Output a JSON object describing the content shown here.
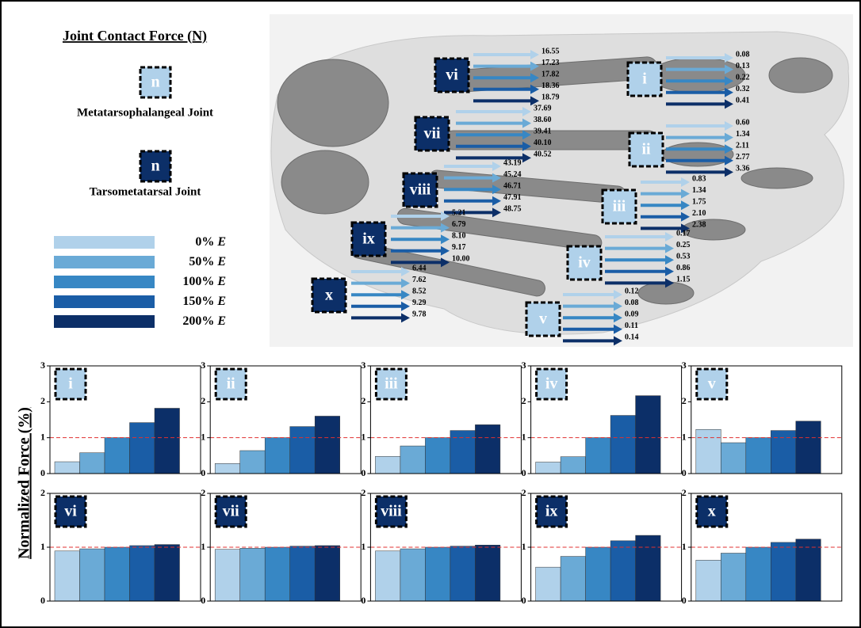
{
  "legend": {
    "title": "Joint Contact Force (N)",
    "box_label": "n",
    "mtp_label": "Metatarsophalangeal Joint",
    "tmt_label": "Tarsometatarsal Joint",
    "levels": [
      "0%",
      "50%",
      "100%",
      "150%",
      "200%"
    ],
    "modulus_symbol": "E",
    "colors": [
      "#b0d1ea",
      "#6aaad6",
      "#3787c4",
      "#1a5da6",
      "#0c2f68"
    ]
  },
  "metatarsophalangeal": [
    {
      "label": "i",
      "forces": [
        0.08,
        0.13,
        0.22,
        0.32,
        0.41
      ],
      "force_labels": [
        "0.08",
        "0.13",
        "0.22",
        "0.32",
        "0.41"
      ]
    },
    {
      "label": "ii",
      "forces": [
        0.6,
        1.34,
        2.11,
        2.77,
        3.36
      ],
      "force_labels": [
        "0.60",
        "1.34",
        "2.11",
        "2.77",
        "3.36"
      ]
    },
    {
      "label": "iii",
      "forces": [
        0.83,
        1.34,
        1.75,
        2.1,
        2.38
      ],
      "force_labels": [
        "0.83",
        "1.34",
        "1.75",
        "2.10",
        "2.38"
      ]
    },
    {
      "label": "iv",
      "forces": [
        0.17,
        0.25,
        0.53,
        0.86,
        1.15
      ],
      "force_labels": [
        "0.17",
        "0.25",
        "0.53",
        "0.86",
        "1.15"
      ]
    },
    {
      "label": "v",
      "forces": [
        0.12,
        0.08,
        0.09,
        0.11,
        0.14
      ],
      "force_labels": [
        "0.12",
        "0.08",
        "0.09",
        "0.11",
        "0.14"
      ]
    }
  ],
  "tarsometatarsal": [
    {
      "label": "vi",
      "forces": [
        16.55,
        17.23,
        17.82,
        18.36,
        18.79
      ],
      "force_labels": [
        "16.55",
        "17.23",
        "17.82",
        "18.36",
        "18.79"
      ]
    },
    {
      "label": "vii",
      "forces": [
        37.69,
        38.6,
        39.41,
        40.1,
        40.52
      ],
      "force_labels": [
        "37.69",
        "38.60",
        "39.41",
        "40.10",
        "40.52"
      ]
    },
    {
      "label": "viii",
      "forces": [
        43.19,
        45.24,
        46.71,
        47.91,
        48.75
      ],
      "force_labels": [
        "43.19",
        "45.24",
        "46.71",
        "47.91",
        "48.75"
      ]
    },
    {
      "label": "ix",
      "forces": [
        5.21,
        6.79,
        8.1,
        9.17,
        10
      ],
      "force_labels": [
        "5.21",
        "6.79",
        "8.10",
        "9.17",
        "10.00"
      ]
    },
    {
      "label": "x",
      "forces": [
        6.44,
        7.62,
        8.52,
        9.29,
        9.78
      ],
      "force_labels": [
        "6.44",
        "7.62",
        "8.52",
        "9.29",
        "9.78"
      ]
    }
  ],
  "y_axis_label": "Normalized Force (%)",
  "chart_data": [
    {
      "type": "bar",
      "label": "i",
      "values": [
        0.33,
        0.58,
        1.0,
        1.42,
        1.82
      ],
      "ylim": [
        0,
        3
      ],
      "yticks": [
        0,
        1,
        2,
        3
      ],
      "ref_line": 1
    },
    {
      "type": "bar",
      "label": "ii",
      "values": [
        0.28,
        0.64,
        1.0,
        1.31,
        1.6
      ],
      "ylim": [
        0,
        3
      ],
      "yticks": [
        0,
        1,
        2,
        3
      ],
      "ref_line": 1
    },
    {
      "type": "bar",
      "label": "iii",
      "values": [
        0.48,
        0.77,
        1.0,
        1.2,
        1.36
      ],
      "ylim": [
        0,
        3
      ],
      "yticks": [
        0,
        1,
        2,
        3
      ],
      "ref_line": 1
    },
    {
      "type": "bar",
      "label": "iv",
      "values": [
        0.32,
        0.47,
        1.0,
        1.62,
        2.17
      ],
      "ylim": [
        0,
        3
      ],
      "yticks": [
        0,
        1,
        2,
        3
      ],
      "ref_line": 1
    },
    {
      "type": "bar",
      "label": "v",
      "values": [
        1.23,
        0.86,
        1.0,
        1.2,
        1.46
      ],
      "ylim": [
        0,
        3
      ],
      "yticks": [
        0,
        1,
        2,
        3
      ],
      "ref_line": 1
    },
    {
      "type": "bar",
      "label": "vi",
      "values": [
        0.93,
        0.97,
        1.0,
        1.03,
        1.05
      ],
      "ylim": [
        0,
        2
      ],
      "yticks": [
        0,
        1,
        2
      ],
      "ref_line": 1
    },
    {
      "type": "bar",
      "label": "vii",
      "values": [
        0.96,
        0.98,
        1.0,
        1.02,
        1.03
      ],
      "ylim": [
        0,
        2
      ],
      "yticks": [
        0,
        1,
        2
      ],
      "ref_line": 1
    },
    {
      "type": "bar",
      "label": "viii",
      "values": [
        0.93,
        0.97,
        1.0,
        1.02,
        1.04
      ],
      "ylim": [
        0,
        2
      ],
      "yticks": [
        0,
        1,
        2
      ],
      "ref_line": 1
    },
    {
      "type": "bar",
      "label": "ix",
      "values": [
        0.63,
        0.83,
        1.0,
        1.12,
        1.22
      ],
      "ylim": [
        0,
        2
      ],
      "yticks": [
        0,
        1,
        2
      ],
      "ref_line": 1
    },
    {
      "type": "bar",
      "label": "x",
      "values": [
        0.76,
        0.89,
        1.0,
        1.09,
        1.15
      ],
      "ylim": [
        0,
        2
      ],
      "yticks": [
        0,
        1,
        2
      ],
      "ref_line": 1
    }
  ]
}
